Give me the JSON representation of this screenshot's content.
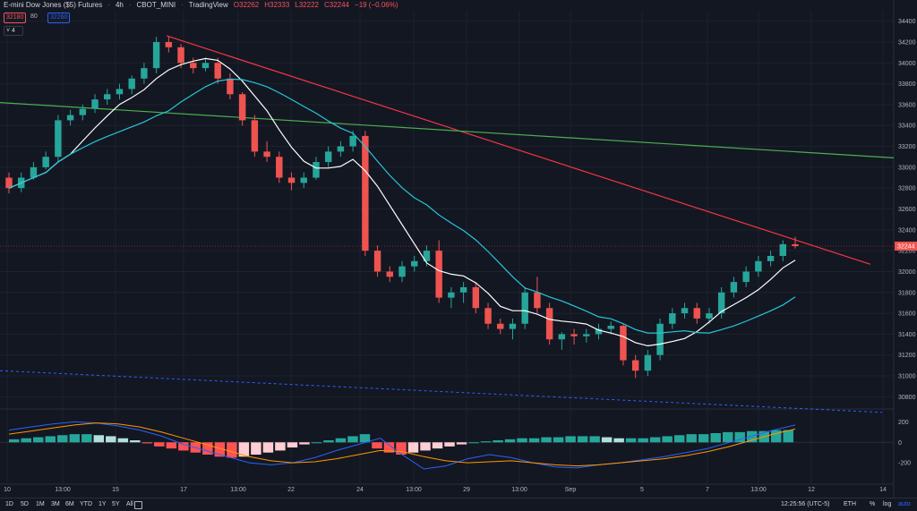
{
  "header": {
    "symbol": "E-mini Dow Jones ($5) Futures",
    "interval": "4h",
    "exchange": "CBOT_MINI",
    "source": "TradingView",
    "open": "O32262",
    "high": "H32333",
    "low": "L32222",
    "close": "C32244",
    "change": "−19 (−0.06%)"
  },
  "quotes": {
    "bid": "32180",
    "spread": "80",
    "ask": "32260",
    "indicator_count": "4"
  },
  "price_axis": {
    "labels": [
      "34400",
      "34200",
      "34000",
      "33800",
      "33600",
      "33400",
      "33200",
      "33000",
      "32800",
      "32600",
      "32400",
      "32200",
      "32000",
      "31800",
      "31600",
      "31400",
      "31200",
      "31000",
      "30800"
    ],
    "last_price": "32244"
  },
  "macd_axis": {
    "labels": [
      "200",
      "0",
      "-200"
    ]
  },
  "time_axis": {
    "labels": [
      "10",
      "13:00",
      "15",
      "17",
      "13:00",
      "22",
      "24",
      "13:00",
      "29",
      "13:00",
      "Sep",
      "5",
      "7",
      "13:00",
      "12",
      "14"
    ]
  },
  "bottombar": {
    "ranges": [
      "1D",
      "5D",
      "1M",
      "3M",
      "6M",
      "YTD",
      "1Y",
      "5Y",
      "All"
    ],
    "clock": "12:25:56 (UTC-5)",
    "session": "ETH",
    "percent": "%",
    "log": "log",
    "auto": "auto"
  },
  "colors": {
    "background": "#131722",
    "up": "#26a69a",
    "down": "#ef5350",
    "sma_fast": "#ffffff",
    "sma_slow": "#26c6da",
    "trendline_red": "#f23645",
    "trendline_green": "#4caf50",
    "dashed_channel": "#2962ff",
    "macd_line": "#2962ff",
    "signal_line": "#ff9800"
  },
  "chart_data": {
    "type": "candlestick",
    "ylim": [
      30700,
      34500
    ],
    "candles_ohlc": [
      [
        32900,
        32950,
        32750,
        32800
      ],
      [
        32800,
        32950,
        32760,
        32900
      ],
      [
        32900,
        33050,
        32880,
        33000
      ],
      [
        33000,
        33150,
        32980,
        33100
      ],
      [
        33100,
        33500,
        33050,
        33450
      ],
      [
        33450,
        33550,
        33400,
        33500
      ],
      [
        33500,
        33600,
        33450,
        33560
      ],
      [
        33560,
        33700,
        33520,
        33650
      ],
      [
        33650,
        33750,
        33600,
        33700
      ],
      [
        33700,
        33800,
        33650,
        33750
      ],
      [
        33750,
        33880,
        33700,
        33850
      ],
      [
        33850,
        34000,
        33800,
        33950
      ],
      [
        33950,
        34250,
        33900,
        34200
      ],
      [
        34200,
        34250,
        34100,
        34150
      ],
      [
        34150,
        34180,
        33950,
        34000
      ],
      [
        34000,
        34050,
        33900,
        33950
      ],
      [
        33950,
        34050,
        33920,
        34000
      ],
      [
        34000,
        34050,
        33800,
        33850
      ],
      [
        33850,
        33900,
        33650,
        33700
      ],
      [
        33700,
        33720,
        33400,
        33450
      ],
      [
        33450,
        33500,
        33100,
        33150
      ],
      [
        33150,
        33250,
        33050,
        33100
      ],
      [
        33100,
        33150,
        32850,
        32900
      ],
      [
        32900,
        32950,
        32780,
        32850
      ],
      [
        32850,
        32950,
        32800,
        32900
      ],
      [
        32900,
        33100,
        32880,
        33050
      ],
      [
        33050,
        33200,
        33000,
        33150
      ],
      [
        33150,
        33250,
        33100,
        33200
      ],
      [
        33200,
        33350,
        33150,
        33300
      ],
      [
        33300,
        33350,
        32150,
        32200
      ],
      [
        32200,
        32250,
        31950,
        32000
      ],
      [
        32000,
        32050,
        31900,
        31950
      ],
      [
        31950,
        32100,
        31900,
        32050
      ],
      [
        32050,
        32150,
        32000,
        32100
      ],
      [
        32100,
        32250,
        32050,
        32200
      ],
      [
        32200,
        32300,
        31700,
        31750
      ],
      [
        31750,
        31850,
        31650,
        31800
      ],
      [
        31800,
        31900,
        31700,
        31850
      ],
      [
        31850,
        31900,
        31600,
        31650
      ],
      [
        31650,
        31700,
        31450,
        31500
      ],
      [
        31500,
        31550,
        31400,
        31450
      ],
      [
        31450,
        31550,
        31350,
        31500
      ],
      [
        31500,
        31850,
        31450,
        31800
      ],
      [
        31800,
        31950,
        31600,
        31650
      ],
      [
        31650,
        31700,
        31300,
        31350
      ],
      [
        31350,
        31420,
        31250,
        31400
      ],
      [
        31400,
        31450,
        31300,
        31380
      ],
      [
        31380,
        31450,
        31320,
        31400
      ],
      [
        31400,
        31500,
        31350,
        31450
      ],
      [
        31450,
        31520,
        31400,
        31480
      ],
      [
        31480,
        31500,
        31100,
        31150
      ],
      [
        31150,
        31200,
        30980,
        31050
      ],
      [
        31050,
        31250,
        31000,
        31200
      ],
      [
        31200,
        31550,
        31150,
        31500
      ],
      [
        31500,
        31650,
        31450,
        31600
      ],
      [
        31600,
        31700,
        31550,
        31650
      ],
      [
        31650,
        31700,
        31500,
        31550
      ],
      [
        31550,
        31650,
        31500,
        31600
      ],
      [
        31600,
        31850,
        31550,
        31800
      ],
      [
        31800,
        31950,
        31750,
        31900
      ],
      [
        31900,
        32050,
        31850,
        32000
      ],
      [
        32000,
        32150,
        31950,
        32100
      ],
      [
        32100,
        32200,
        32050,
        32150
      ],
      [
        32150,
        32300,
        32100,
        32262
      ],
      [
        32262,
        32333,
        32222,
        32244
      ]
    ],
    "macd_hist": [
      30,
      40,
      50,
      60,
      70,
      80,
      80,
      70,
      60,
      40,
      20,
      -10,
      -40,
      -60,
      -80,
      -100,
      -120,
      -140,
      -150,
      -140,
      -120,
      -100,
      -80,
      -50,
      -20,
      0,
      20,
      40,
      60,
      80,
      -60,
      -100,
      -120,
      -100,
      -80,
      -60,
      -40,
      -20,
      0,
      10,
      20,
      30,
      40,
      40,
      50,
      50,
      60,
      60,
      60,
      50,
      40,
      40,
      40,
      50,
      60,
      70,
      80,
      80,
      90,
      100,
      100,
      110,
      110,
      120,
      120
    ],
    "macd_line": [
      120,
      150,
      180,
      200,
      190,
      160,
      120,
      60,
      -20,
      -80,
      -140,
      -200,
      -220,
      -200,
      -150,
      -80,
      -20,
      40,
      -120,
      -260,
      -230,
      -160,
      -120,
      -150,
      -200,
      -240,
      -250,
      -220,
      -200,
      -170,
      -140,
      -100,
      -60,
      0,
      60,
      120,
      170
    ],
    "signal_line": [
      80,
      110,
      140,
      170,
      190,
      180,
      150,
      100,
      40,
      -20,
      -80,
      -140,
      -180,
      -200,
      -190,
      -160,
      -120,
      -80,
      -90,
      -140,
      -180,
      -200,
      -190,
      -180,
      -200,
      -220,
      -230,
      -220,
      -200,
      -180,
      -160,
      -130,
      -90,
      -40,
      20,
      80,
      130
    ],
    "macd_ylim": [
      -400,
      300
    ]
  }
}
